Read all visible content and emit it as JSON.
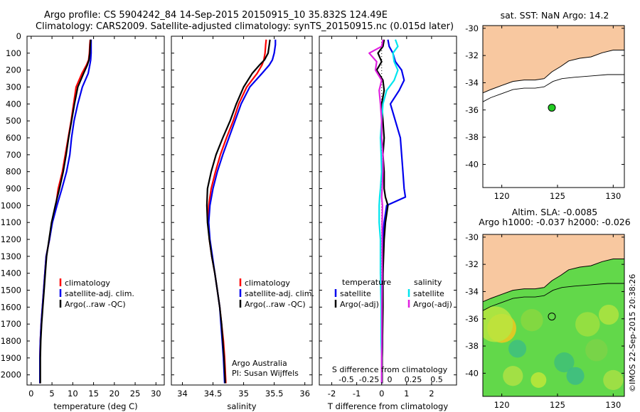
{
  "header": {
    "line1": "Argo profile: CS 5904242_84 14-Sep-2015 20150915_10 35.832S 124.49E",
    "line2": "Climatology: CARS2009. Satellite-adjusted climatology: synTS_20150915.nc (0.015d later)"
  },
  "colors": {
    "climatology": "#ff0000",
    "satellite": "#0000ee",
    "argo": "#000000",
    "sat_salinity": "#00e5ee",
    "argo_salinity_diff": "#e020e0",
    "land": "#f8c8a0"
  },
  "depth_axis": {
    "ticks": [
      0,
      100,
      200,
      300,
      400,
      500,
      600,
      700,
      800,
      900,
      1000,
      1100,
      1200,
      1300,
      1400,
      1500,
      1600,
      1700,
      1800,
      1900,
      2000
    ],
    "ylim": [
      0,
      2060
    ]
  },
  "chart_data": [
    {
      "type": "line",
      "xlabel": "temperature (deg C)",
      "xticks": [
        0,
        5,
        10,
        15,
        20,
        25,
        30
      ],
      "xlim": [
        -1,
        32
      ],
      "legend": [
        "climatology",
        "satellite-adj. clim.",
        "Argo(..raw -QC)"
      ],
      "series": [
        {
          "name": "climatology",
          "color": "#ff0000",
          "x": [
            14.2,
            14.1,
            14.0,
            13.8,
            13.3,
            12.2,
            10.8,
            10.2,
            9.6,
            8.9,
            8.2,
            7.5,
            6.5,
            5.9,
            5.0,
            4.4,
            3.6,
            3.3,
            3.0,
            2.7,
            2.4,
            2.2,
            2.1,
            2.1
          ],
          "y": [
            20,
            50,
            100,
            140,
            170,
            220,
            300,
            400,
            500,
            600,
            700,
            800,
            900,
            1000,
            1100,
            1200,
            1300,
            1400,
            1500,
            1600,
            1700,
            1800,
            1900,
            2050
          ]
        },
        {
          "name": "satellite-adj. clim.",
          "color": "#0000ee",
          "x": [
            14.4,
            14.4,
            14.4,
            14.3,
            14.1,
            13.7,
            12.3,
            11.2,
            10.3,
            9.7,
            9.3,
            8.5,
            7.4,
            6.2,
            5.1,
            4.4,
            3.6,
            3.3,
            3.0,
            2.7,
            2.4,
            2.2,
            2.1,
            2.1
          ],
          "y": [
            20,
            50,
            100,
            140,
            170,
            220,
            300,
            400,
            500,
            600,
            700,
            800,
            900,
            1000,
            1100,
            1200,
            1300,
            1400,
            1500,
            1600,
            1700,
            1800,
            1900,
            2050
          ]
        },
        {
          "name": "Argo(..raw -QC)",
          "color": "#000000",
          "x": [
            14.3,
            14.2,
            14.1,
            13.9,
            13.5,
            12.6,
            11.2,
            10.4,
            9.7,
            9.0,
            8.4,
            7.7,
            6.8,
            5.8,
            4.9,
            4.3,
            3.7,
            3.4,
            3.1,
            2.8,
            2.5,
            2.3,
            2.2,
            2.2
          ],
          "y": [
            20,
            50,
            100,
            140,
            170,
            220,
            300,
            400,
            500,
            600,
            700,
            800,
            900,
            1000,
            1100,
            1200,
            1300,
            1400,
            1500,
            1600,
            1700,
            1800,
            1900,
            2050
          ]
        }
      ]
    },
    {
      "type": "line",
      "xlabel": "salinity",
      "xticks": [
        34,
        34.5,
        35,
        35.5,
        36
      ],
      "xtick_labels": [
        "34",
        "34.5",
        "35",
        "35.5",
        "36"
      ],
      "xlim": [
        33.82,
        36.12
      ],
      "legend": [
        "climatology",
        "satellite-adj. clim.",
        "Argo(..raw -QC)"
      ],
      "annotation": [
        "Argo Australia",
        "PI: Susan Wijffels"
      ],
      "series": [
        {
          "name": "climatology",
          "color": "#ff0000",
          "x": [
            35.37,
            35.36,
            35.35,
            35.33,
            35.3,
            35.22,
            35.05,
            34.92,
            34.83,
            34.72,
            34.62,
            34.54,
            34.47,
            34.43,
            34.42,
            34.44,
            34.48,
            34.53,
            34.57,
            34.61,
            34.64,
            34.67,
            34.69,
            34.71
          ],
          "y": [
            20,
            50,
            100,
            140,
            170,
            220,
            300,
            400,
            500,
            600,
            700,
            800,
            900,
            1000,
            1100,
            1200,
            1300,
            1400,
            1500,
            1600,
            1700,
            1800,
            1900,
            2050
          ]
        },
        {
          "name": "satellite-adj. clim.",
          "color": "#0000ee",
          "x": [
            35.52,
            35.52,
            35.5,
            35.47,
            35.42,
            35.3,
            35.1,
            34.96,
            34.86,
            34.76,
            34.66,
            34.57,
            34.5,
            34.45,
            34.43,
            34.45,
            34.49,
            34.53,
            34.57,
            34.61,
            34.63,
            34.65,
            34.67,
            34.69
          ],
          "y": [
            20,
            50,
            100,
            140,
            170,
            220,
            300,
            400,
            500,
            600,
            700,
            800,
            900,
            1000,
            1100,
            1200,
            1300,
            1400,
            1500,
            1600,
            1700,
            1800,
            1900,
            2050
          ]
        },
        {
          "name": "Argo(..raw -QC)",
          "color": "#000000",
          "x": [
            35.43,
            35.42,
            35.4,
            35.34,
            35.26,
            35.14,
            35.0,
            34.88,
            34.78,
            34.66,
            34.55,
            34.47,
            34.41,
            34.4,
            34.41,
            34.44,
            34.48,
            34.53,
            34.57,
            34.61,
            34.64,
            34.66,
            34.68,
            34.7
          ],
          "y": [
            20,
            50,
            100,
            140,
            170,
            220,
            300,
            400,
            500,
            600,
            700,
            800,
            900,
            1000,
            1100,
            1200,
            1300,
            1400,
            1500,
            1600,
            1700,
            1800,
            1900,
            2050
          ]
        }
      ]
    },
    {
      "type": "line",
      "xlabel": "T difference from climatology",
      "xlabel_top": "S difference from climatology",
      "xticks": [
        -2,
        -1,
        0,
        1,
        2
      ],
      "xticks_top": [
        "-0.5",
        "-0.25",
        "0",
        "0.25",
        "0.5"
      ],
      "xlim": [
        -2.5,
        3
      ],
      "legend_temperature": [
        "temperature",
        "satellite",
        "Argo(-adj)"
      ],
      "legend_salinity": [
        "salinity",
        "satellite",
        "Argo(-adj)"
      ],
      "series": [
        {
          "name": "satellite",
          "color": "#0000ee",
          "x": [
            0.25,
            0.3,
            0.45,
            0.55,
            0.8,
            0.9,
            0.7,
            0.35,
            0.55,
            0.75,
            0.8,
            0.85,
            0.9,
            0.95,
            0.2,
            0.1,
            0.05,
            0.05,
            0.03,
            0.03,
            0.02,
            0.02
          ],
          "y": [
            20,
            60,
            100,
            150,
            200,
            260,
            320,
            400,
            500,
            600,
            700,
            800,
            900,
            950,
            1000,
            1100,
            1200,
            1400,
            1600,
            1800,
            1900,
            2050
          ]
        },
        {
          "name": "Argo(-adj)",
          "color": "#000000",
          "x": [
            0.1,
            0.05,
            -0.15,
            0.0,
            -0.2,
            0.05,
            0.1,
            0.0,
            0.05,
            0.1,
            0.05,
            0.1,
            0.1,
            0.15,
            0.25,
            0.15,
            0.1,
            0.05,
            0.05,
            0.03,
            0.02,
            0.02
          ],
          "y": [
            20,
            60,
            100,
            150,
            200,
            260,
            320,
            400,
            500,
            600,
            700,
            800,
            900,
            950,
            1000,
            1100,
            1200,
            1400,
            1600,
            1800,
            1900,
            2050
          ]
        },
        {
          "name": "salinity satellite",
          "color": "#00e5ee",
          "x": [
            0.55,
            0.65,
            0.45,
            0.5,
            0.65,
            0.5,
            0.2,
            0.05,
            0.0,
            -0.05,
            -0.02,
            0.0,
            -0.05,
            -0.08,
            -0.1,
            -0.1,
            -0.05,
            -0.05,
            -0.02,
            -0.02,
            0.0,
            0.0
          ],
          "y": [
            20,
            60,
            100,
            150,
            200,
            260,
            320,
            400,
            500,
            600,
            700,
            800,
            900,
            950,
            1000,
            1100,
            1200,
            1400,
            1600,
            1800,
            1900,
            2050
          ]
        },
        {
          "name": "salinity Argo(-adj)",
          "color": "#e020e0",
          "x": [
            0.05,
            0.0,
            -0.5,
            -0.2,
            -0.25,
            0.0,
            -0.1,
            -0.05,
            0.0,
            0.0,
            0.05,
            0.05,
            0.02,
            0.0,
            0.03,
            0.02,
            0.02,
            0.02,
            0.01,
            0.01,
            0.0,
            0.0
          ],
          "y": [
            20,
            60,
            100,
            150,
            200,
            260,
            320,
            400,
            500,
            600,
            700,
            800,
            900,
            950,
            1000,
            1100,
            1200,
            1400,
            1600,
            1800,
            1900,
            2050
          ]
        }
      ]
    },
    {
      "type": "map",
      "title": "sat. SST: NaN Argo: 14.2",
      "xticks": [
        120,
        125,
        130
      ],
      "yticks": [
        -30,
        -32,
        -34,
        -36,
        -38,
        -40
      ],
      "xlim": [
        118.3,
        131
      ],
      "ylim": [
        -41.7,
        -29.8
      ],
      "profile_location": [
        124.49,
        -35.832
      ],
      "marker_color": "#22cc22"
    },
    {
      "type": "map",
      "title_lines": [
        "Altim. SLA: -0.0085",
        "Argo h1000: -0.037 h2000: -0.026"
      ],
      "xticks": [
        120,
        125,
        130
      ],
      "yticks": [
        -30,
        -32,
        -34,
        -36,
        -38,
        -40
      ],
      "xlim": [
        118.3,
        131
      ],
      "ylim": [
        -41.7,
        -29.8
      ],
      "profile_location": [
        124.49,
        -35.832
      ],
      "copyright": "©IMOS 22-Sep-2015 20:38:26"
    }
  ]
}
